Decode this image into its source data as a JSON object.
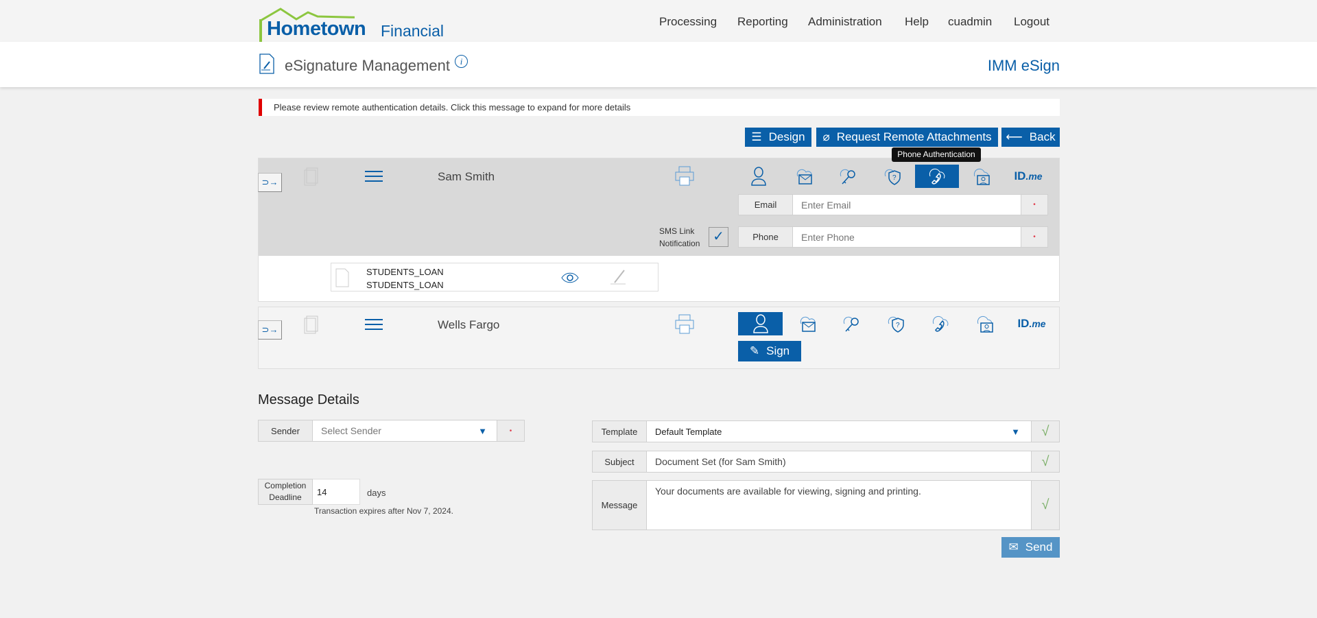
{
  "brand": {
    "name_bold": "Hometown",
    "name_light": "Financial",
    "colors": {
      "primary": "#0a5fa8",
      "green": "#8cc63f",
      "alert": "#e00000"
    }
  },
  "nav": [
    "Processing",
    "Reporting",
    "Administration",
    "Help",
    "cuadmin",
    "Logout"
  ],
  "page": {
    "title": "eSignature Management",
    "product": "IMM eSign"
  },
  "alert": {
    "text": "Please review remote authentication details. Click this message to expand for more details"
  },
  "toolbar": {
    "design": "Design",
    "attachments": "Request Remote Attachments",
    "back": "Back"
  },
  "tooltip": "Phone Authentication",
  "idme": {
    "id": "ID",
    "me": ".me"
  },
  "recipients": [
    {
      "name": "Sam Smith",
      "active_auth": "phone",
      "email_label": "Email",
      "email_placeholder": "Enter Email",
      "phone_label": "Phone",
      "phone_placeholder": "Enter Phone",
      "sms_label_1": "SMS Link",
      "sms_label_2": "Notification",
      "sms_checked": true,
      "document": {
        "line1": "STUDENTS_LOAN",
        "line2": "STUDENTS_LOAN"
      }
    },
    {
      "name": "Wells Fargo",
      "active_auth": "person",
      "sign_label": "Sign"
    }
  ],
  "message_details": {
    "heading": "Message Details",
    "sender_label": "Sender",
    "sender_placeholder": "Select Sender",
    "deadline_label_1": "Completion",
    "deadline_label_2": "Deadline",
    "deadline_value": "14",
    "deadline_unit": "days",
    "expires": "Transaction expires after Nov 7, 2024.",
    "template_label": "Template",
    "template_value": "Default Template",
    "subject_label": "Subject",
    "subject_value": "Document Set (for Sam Smith)",
    "message_label": "Message",
    "message_value": "Your documents are available for viewing, signing and printing.",
    "send": "Send"
  }
}
